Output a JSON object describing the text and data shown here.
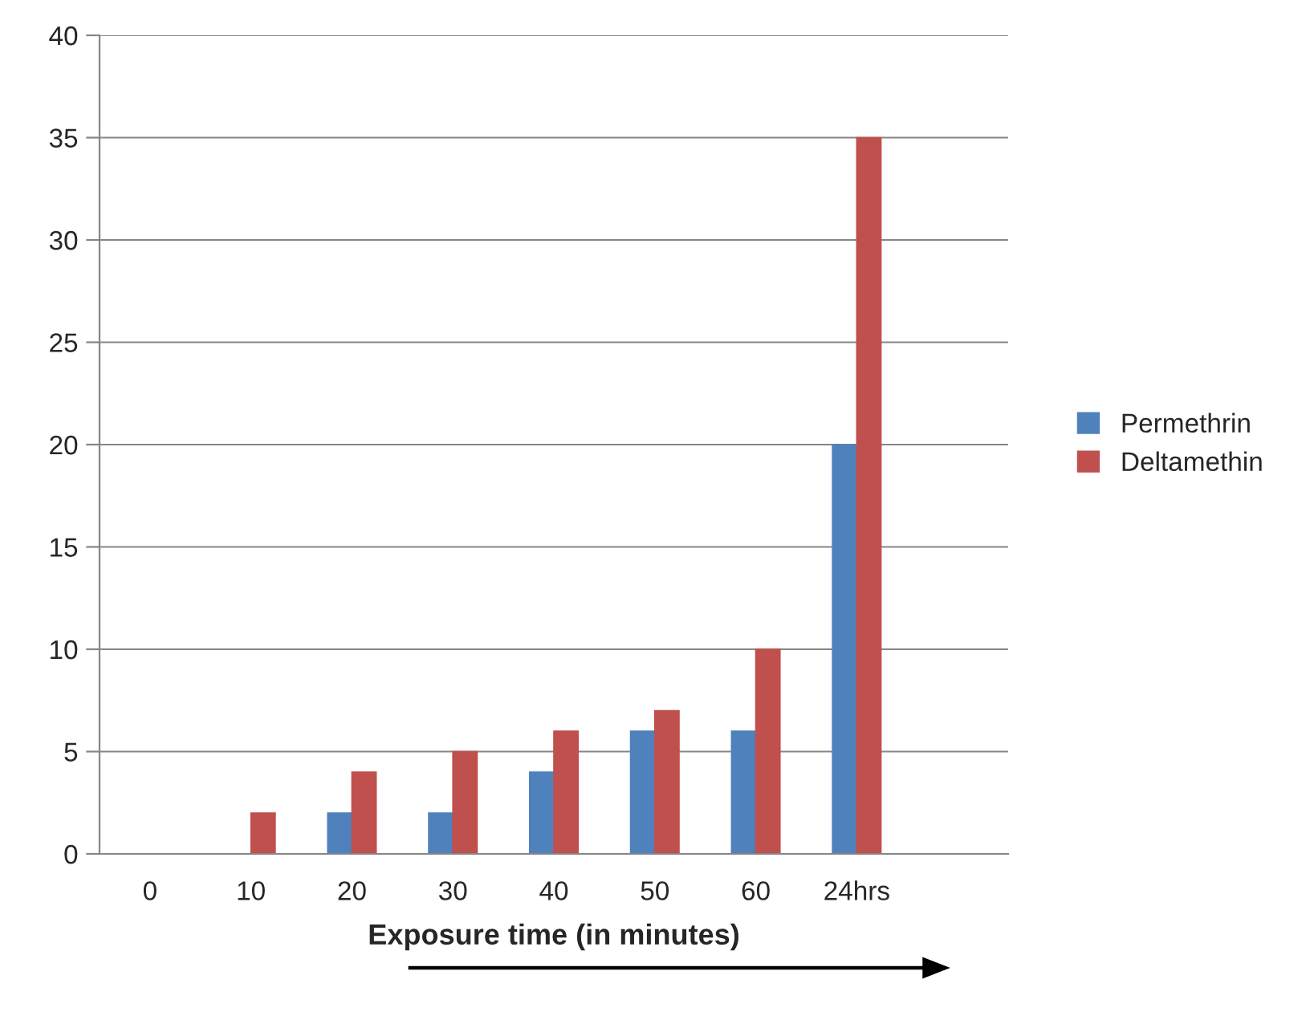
{
  "chart_data": {
    "type": "bar",
    "xlabel": "Exposure time (in minutes)",
    "categories": [
      "0",
      "10",
      "20",
      "30",
      "40",
      "50",
      "60",
      "24hrs",
      null
    ],
    "series": [
      {
        "name": "Permethrin",
        "color": "#4f81bd",
        "values": [
          0,
          0,
          2,
          2,
          4,
          6,
          6,
          20,
          null
        ]
      },
      {
        "name": "Deltamethin",
        "color": "#c0504d",
        "values": [
          0,
          2,
          4,
          5,
          6,
          7,
          10,
          35,
          null
        ]
      }
    ],
    "ylim": [
      0,
      40
    ],
    "yticks": [
      0,
      5,
      10,
      15,
      20,
      25,
      30,
      35,
      40
    ],
    "grid": "y",
    "legend": "right"
  }
}
